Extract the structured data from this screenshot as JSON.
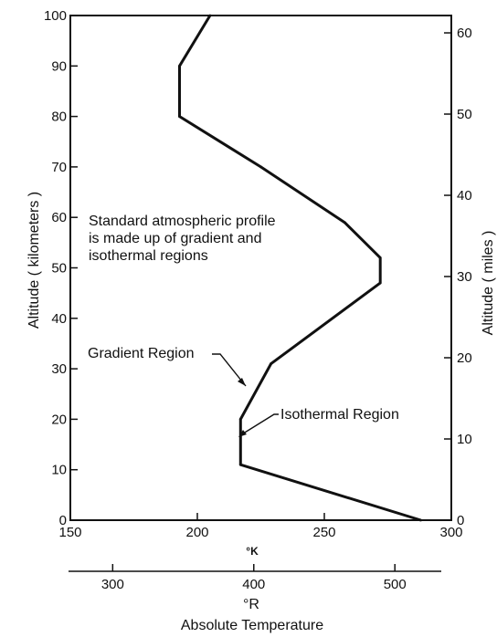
{
  "chart_data": {
    "type": "line",
    "x_unit": "°K",
    "y_left_label": "Altitude ( kilometers )",
    "y_right_label": "Altitude ( miles )",
    "x_title": "Absolute Temperature",
    "x_secondary_unit": "°R",
    "xlim_k": [
      150,
      300
    ],
    "ylim_km": [
      0,
      100
    ],
    "ylim_miles": [
      0,
      62
    ],
    "x_ticks_k": [
      "150",
      "200",
      "250",
      "300"
    ],
    "y_ticks_km": [
      "0",
      "10",
      "20",
      "30",
      "40",
      "50",
      "60",
      "70",
      "80",
      "90",
      "100"
    ],
    "y_ticks_miles": [
      "0",
      "10",
      "20",
      "30",
      "40",
      "50",
      "60"
    ],
    "x_ticks_r": [
      "300",
      "400",
      "500"
    ],
    "series": [
      {
        "x": [
          288,
          217,
          217,
          229,
          272,
          272,
          258,
          225,
          193,
          193,
          205
        ],
        "y": [
          0,
          11,
          20,
          31,
          47,
          52,
          59,
          70,
          80,
          90,
          100
        ]
      }
    ],
    "annotations": {
      "profile_note": [
        "Standard atmospheric profile",
        "is made up of gradient and",
        "isothermal regions"
      ],
      "gradient_region": "Gradient Region",
      "isothermal_region": "Isothermal Region"
    },
    "grid": false
  }
}
